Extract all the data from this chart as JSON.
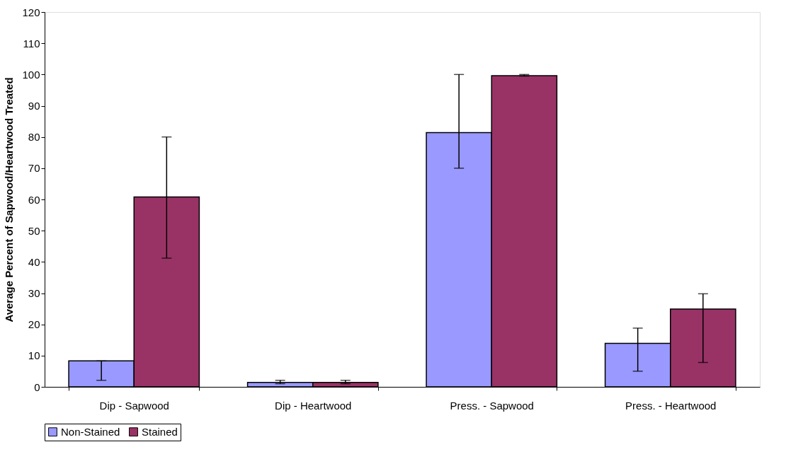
{
  "chart_data": {
    "type": "bar",
    "ylabel": "Average Percent of Sapwood/Heartwood Treated",
    "categories": [
      "Dip - Sapwood",
      "Dip - Heartwood",
      "Press. - Sapwood",
      "Press. - Heartwood"
    ],
    "series": [
      {
        "name": "Non-Stained",
        "color": "#9999ff",
        "values": [
          8.3,
          1.4,
          81.4,
          13.9
        ],
        "errors": [
          [
            2.1,
            8.3
          ],
          [
            1.0,
            2.1
          ],
          [
            70,
            100
          ],
          [
            5,
            18.8
          ]
        ]
      },
      {
        "name": "Stained",
        "color": "#993366",
        "values": [
          60.8,
          1.4,
          99.6,
          24.9
        ],
        "errors": [
          [
            41.2,
            80
          ],
          [
            1.0,
            2.1
          ],
          [
            99.5,
            100
          ],
          [
            7.8,
            29.8
          ]
        ]
      }
    ],
    "ylim": [
      0,
      120
    ],
    "yticks": [
      0,
      10,
      20,
      30,
      40,
      50,
      60,
      70,
      80,
      90,
      100,
      110,
      120
    ],
    "grid": false,
    "legend": "bottom"
  }
}
